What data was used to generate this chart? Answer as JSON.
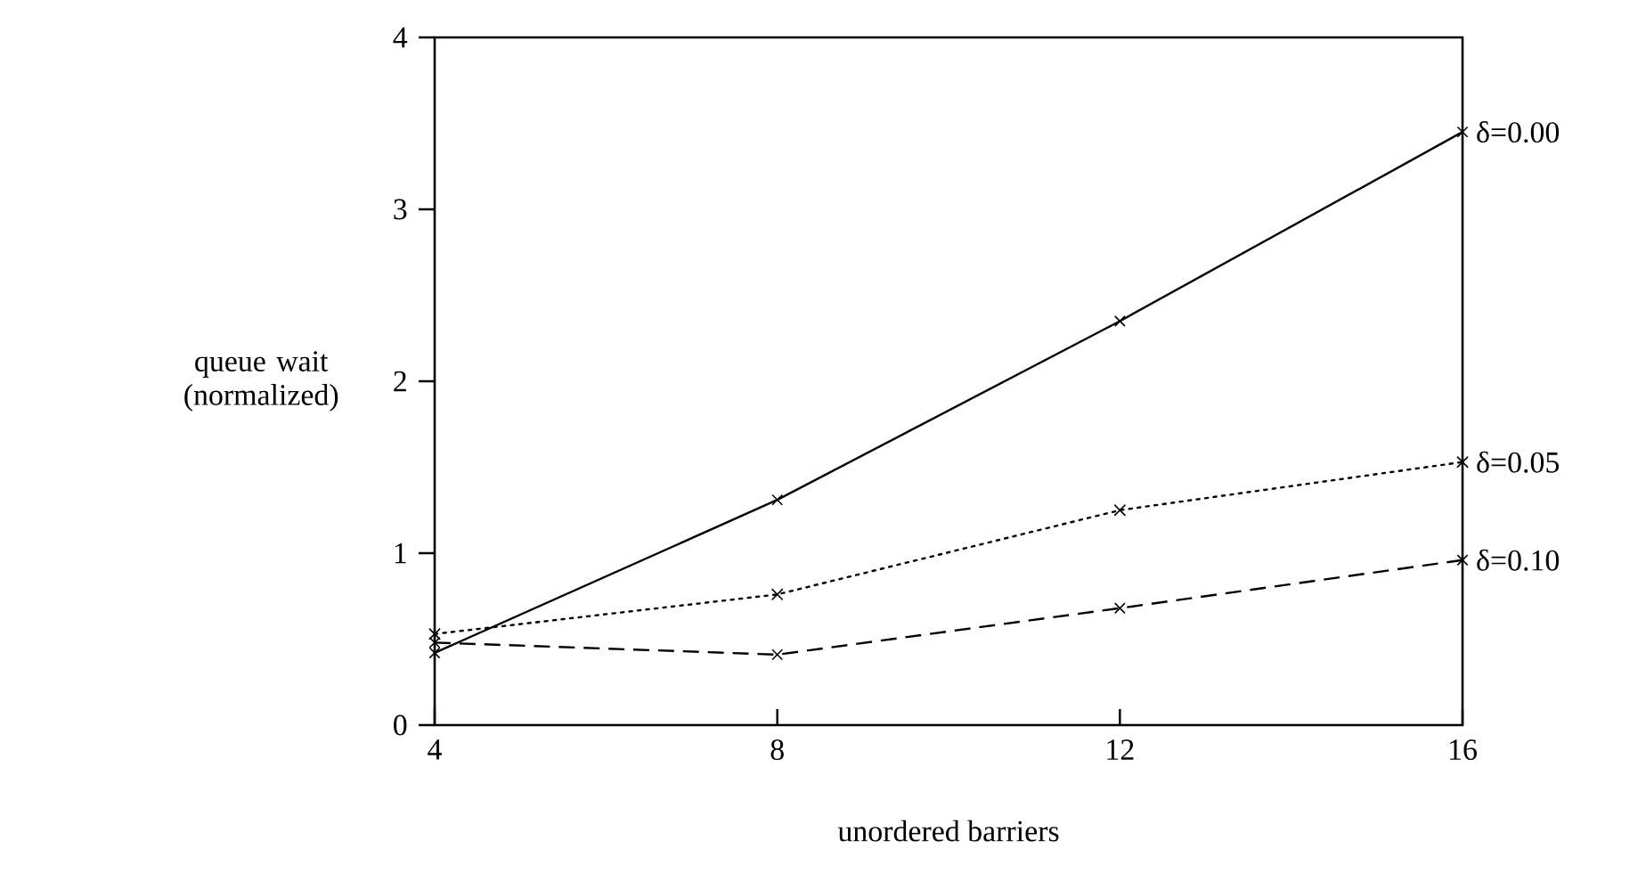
{
  "chart_data": {
    "type": "line",
    "xlabel": "unordered barriers",
    "ylabel": "queue wait (normalized)",
    "x": [
      4,
      8,
      12,
      16
    ],
    "xlim": [
      4,
      16
    ],
    "xticks": [
      4,
      8,
      12,
      16
    ],
    "ylim": [
      0,
      4
    ],
    "yticks": [
      0,
      1,
      2,
      3,
      4
    ],
    "marker": "cross",
    "legend": false,
    "grid": false,
    "series": [
      {
        "name": "δ=0.00",
        "color": "#000000",
        "line_style": "solid",
        "values": [
          0.42,
          1.31,
          2.35,
          3.45
        ]
      },
      {
        "name": "δ=0.05",
        "color": "#000000",
        "line_style": "dotted",
        "values": [
          0.53,
          0.76,
          1.25,
          1.53
        ]
      },
      {
        "name": "δ=0.10",
        "color": "#000000",
        "line_style": "dashed",
        "values": [
          0.48,
          0.41,
          0.68,
          0.96
        ]
      }
    ]
  }
}
